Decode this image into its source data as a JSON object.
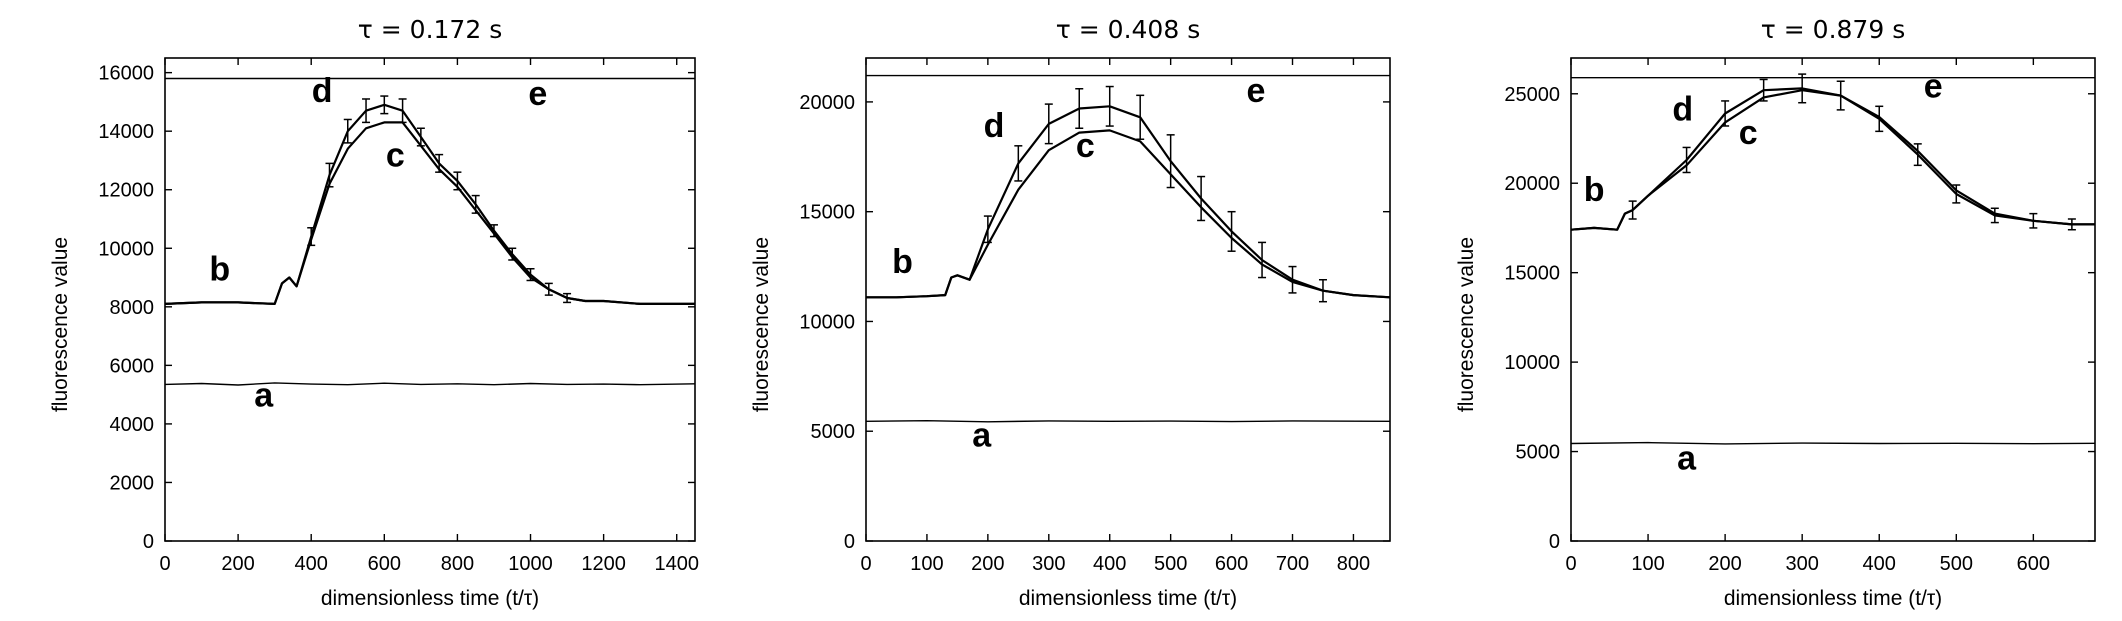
{
  "chart_data": [
    {
      "type": "line",
      "title": "τ = 0.172 s",
      "xlabel": "dimensionless time (t/τ)",
      "ylabel": "fluorescence value",
      "xlim": [
        0,
        1450
      ],
      "ylim": [
        0,
        16500
      ],
      "xticks": [
        0,
        200,
        400,
        600,
        800,
        1000,
        1200,
        1400
      ],
      "yticks": [
        0,
        2000,
        4000,
        6000,
        8000,
        10000,
        12000,
        14000,
        16000
      ],
      "grid": false,
      "series": [
        {
          "name": "a",
          "x": [
            0,
            100,
            200,
            300,
            400,
            500,
            600,
            700,
            800,
            900,
            1000,
            1100,
            1200,
            1300,
            1450
          ],
          "y": [
            5350,
            5380,
            5330,
            5400,
            5360,
            5340,
            5390,
            5350,
            5370,
            5340,
            5380,
            5350,
            5360,
            5340,
            5370
          ]
        },
        {
          "name": "b",
          "x": [
            0,
            100,
            200,
            300,
            320,
            340,
            360,
            400,
            450,
            500,
            550,
            600,
            650,
            700,
            750,
            800,
            850,
            900,
            950,
            1000,
            1050,
            1100,
            1150,
            1200,
            1300,
            1450
          ],
          "y": [
            8100,
            8150,
            8150,
            8100,
            8800,
            9000,
            8700,
            10300,
            12200,
            13400,
            14100,
            14300,
            14300,
            13500,
            12700,
            12100,
            11300,
            10500,
            9700,
            9000,
            8600,
            8300,
            8200,
            8200,
            8100,
            8100
          ]
        },
        {
          "name": "d",
          "x": [
            0,
            100,
            200,
            300,
            320,
            340,
            360,
            400,
            450,
            500,
            550,
            600,
            650,
            700,
            750,
            800,
            850,
            900,
            950,
            1000,
            1050,
            1100,
            1150,
            1200,
            1300,
            1450
          ],
          "y": [
            8100,
            8150,
            8150,
            8100,
            8800,
            9000,
            8700,
            10400,
            12500,
            14000,
            14700,
            14900,
            14700,
            13800,
            12900,
            12300,
            11500,
            10600,
            9800,
            9100,
            8600,
            8300,
            8200,
            8200,
            8100,
            8100
          ]
        },
        {
          "name": "e",
          "x": [
            0,
            1450
          ],
          "y": [
            15800,
            15800
          ]
        }
      ],
      "error_bars": {
        "x": [
          400,
          450,
          500,
          550,
          600,
          650,
          700,
          750,
          800,
          850,
          900,
          950,
          1000,
          1050,
          1100
        ],
        "err": [
          300,
          400,
          400,
          400,
          300,
          400,
          300,
          300,
          300,
          300,
          200,
          200,
          200,
          200,
          150
        ]
      },
      "annotations": [
        {
          "text": "a",
          "x": 270,
          "y": 4600
        },
        {
          "text": "b",
          "x": 150,
          "y": 8900
        },
        {
          "text": "c",
          "x": 630,
          "y": 12800
        },
        {
          "text": "d",
          "x": 430,
          "y": 15000
        },
        {
          "text": "e",
          "x": 1020,
          "y": 14900
        }
      ]
    },
    {
      "type": "line",
      "title": "τ = 0.408 s",
      "xlabel": "dimensionless time (t/τ)",
      "ylabel": "fluorescence value",
      "xlim": [
        0,
        860
      ],
      "ylim": [
        0,
        22000
      ],
      "xticks": [
        0,
        100,
        200,
        300,
        400,
        500,
        600,
        700,
        800
      ],
      "yticks": [
        0,
        5000,
        10000,
        15000,
        20000
      ],
      "grid": false,
      "series": [
        {
          "name": "a",
          "x": [
            0,
            100,
            200,
            300,
            400,
            500,
            600,
            700,
            860
          ],
          "y": [
            5450,
            5480,
            5430,
            5470,
            5450,
            5460,
            5440,
            5470,
            5450
          ]
        },
        {
          "name": "b",
          "x": [
            0,
            50,
            100,
            130,
            140,
            150,
            170,
            200,
            250,
            300,
            350,
            400,
            450,
            500,
            550,
            600,
            650,
            700,
            750,
            800,
            860
          ],
          "y": [
            11100,
            11100,
            11150,
            11200,
            12000,
            12100,
            11900,
            13500,
            16000,
            17800,
            18600,
            18700,
            18200,
            16700,
            15200,
            13800,
            12600,
            11800,
            11400,
            11200,
            11100
          ]
        },
        {
          "name": "d",
          "x": [
            0,
            50,
            100,
            130,
            140,
            150,
            170,
            200,
            250,
            300,
            350,
            400,
            450,
            500,
            550,
            600,
            650,
            700,
            750,
            800,
            860
          ],
          "y": [
            11100,
            11100,
            11150,
            11200,
            12000,
            12100,
            11900,
            14200,
            17200,
            19000,
            19700,
            19800,
            19300,
            17300,
            15600,
            14100,
            12800,
            11900,
            11400,
            11200,
            11100
          ]
        },
        {
          "name": "e",
          "x": [
            0,
            860
          ],
          "y": [
            21200,
            21200
          ]
        }
      ],
      "error_bars": {
        "x": [
          200,
          250,
          300,
          350,
          400,
          450,
          500,
          550,
          600,
          650,
          700,
          750
        ],
        "err": [
          600,
          800,
          900,
          900,
          900,
          1000,
          1200,
          1000,
          900,
          800,
          600,
          500
        ]
      },
      "annotations": [
        {
          "text": "a",
          "x": 190,
          "y": 4300
        },
        {
          "text": "b",
          "x": 60,
          "y": 12200
        },
        {
          "text": "c",
          "x": 360,
          "y": 17500
        },
        {
          "text": "d",
          "x": 210,
          "y": 18400
        },
        {
          "text": "e",
          "x": 640,
          "y": 20000
        }
      ]
    },
    {
      "type": "line",
      "title": "τ = 0.879 s",
      "xlabel": "dimensionless time (t/τ)",
      "ylabel": "fluorescence value",
      "xlim": [
        0,
        680
      ],
      "ylim": [
        0,
        27000
      ],
      "xticks": [
        0,
        100,
        200,
        300,
        400,
        500,
        600
      ],
      "yticks": [
        0,
        5000,
        10000,
        15000,
        20000,
        25000
      ],
      "grid": false,
      "series": [
        {
          "name": "a",
          "x": [
            0,
            100,
            200,
            300,
            400,
            500,
            600,
            680
          ],
          "y": [
            5450,
            5500,
            5430,
            5470,
            5450,
            5460,
            5440,
            5460
          ]
        },
        {
          "name": "b",
          "x": [
            0,
            30,
            60,
            70,
            80,
            100,
            150,
            200,
            250,
            300,
            350,
            400,
            450,
            500,
            550,
            600,
            650,
            680
          ],
          "y": [
            17400,
            17500,
            17400,
            18300,
            18500,
            19300,
            21000,
            23400,
            24800,
            25200,
            24900,
            23700,
            21800,
            19600,
            18300,
            17900,
            17700,
            17700
          ]
        },
        {
          "name": "d",
          "x": [
            0,
            30,
            60,
            70,
            80,
            100,
            150,
            200,
            250,
            300,
            350,
            400,
            450,
            500,
            550,
            600,
            650,
            680
          ],
          "y": [
            17400,
            17500,
            17400,
            18300,
            18500,
            19300,
            21300,
            23900,
            25200,
            25300,
            24900,
            23600,
            21600,
            19400,
            18200,
            17900,
            17700,
            17700
          ]
        },
        {
          "name": "e",
          "x": [
            0,
            680
          ],
          "y": [
            25900,
            25900
          ]
        }
      ],
      "error_bars": {
        "x": [
          80,
          150,
          200,
          250,
          300,
          350,
          400,
          450,
          500,
          550,
          600,
          650
        ],
        "err": [
          500,
          700,
          700,
          600,
          800,
          800,
          700,
          600,
          500,
          400,
          400,
          300
        ]
      },
      "annotations": [
        {
          "text": "a",
          "x": 150,
          "y": 4000
        },
        {
          "text": "b",
          "x": 30,
          "y": 19000
        },
        {
          "text": "c",
          "x": 230,
          "y": 22200
        },
        {
          "text": "d",
          "x": 145,
          "y": 23500
        },
        {
          "text": "e",
          "x": 470,
          "y": 24800
        }
      ]
    }
  ]
}
